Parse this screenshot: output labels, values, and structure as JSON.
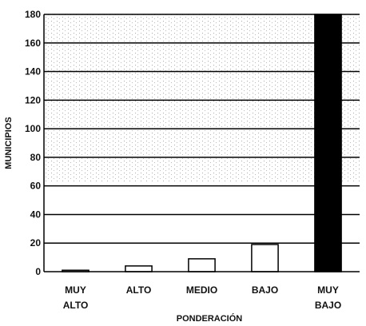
{
  "chart_data": {
    "type": "bar",
    "title": "",
    "xlabel": "PONDERACIÓN",
    "ylabel": "MUNICIPIOS",
    "categories": [
      [
        "MUY",
        "ALTO"
      ],
      [
        "ALTO"
      ],
      [
        "MEDIO"
      ],
      [
        "BAJO"
      ],
      [
        "MUY",
        "BAJO"
      ]
    ],
    "values": [
      1,
      4,
      9,
      19,
      180
    ],
    "ylim": [
      0,
      180
    ],
    "yticks": [
      "0",
      "20",
      "40",
      "60",
      "80",
      "100",
      "120",
      "140",
      "160",
      "180"
    ],
    "grid": true,
    "legend": "none",
    "colors": {
      "bar_fill": [
        "#ffffff",
        "#ffffff",
        "#ffffff",
        "#ffffff",
        "#000000"
      ],
      "bar_stroke": "#000000",
      "grid": "#000000",
      "speckle": "#9a9a9a"
    }
  }
}
